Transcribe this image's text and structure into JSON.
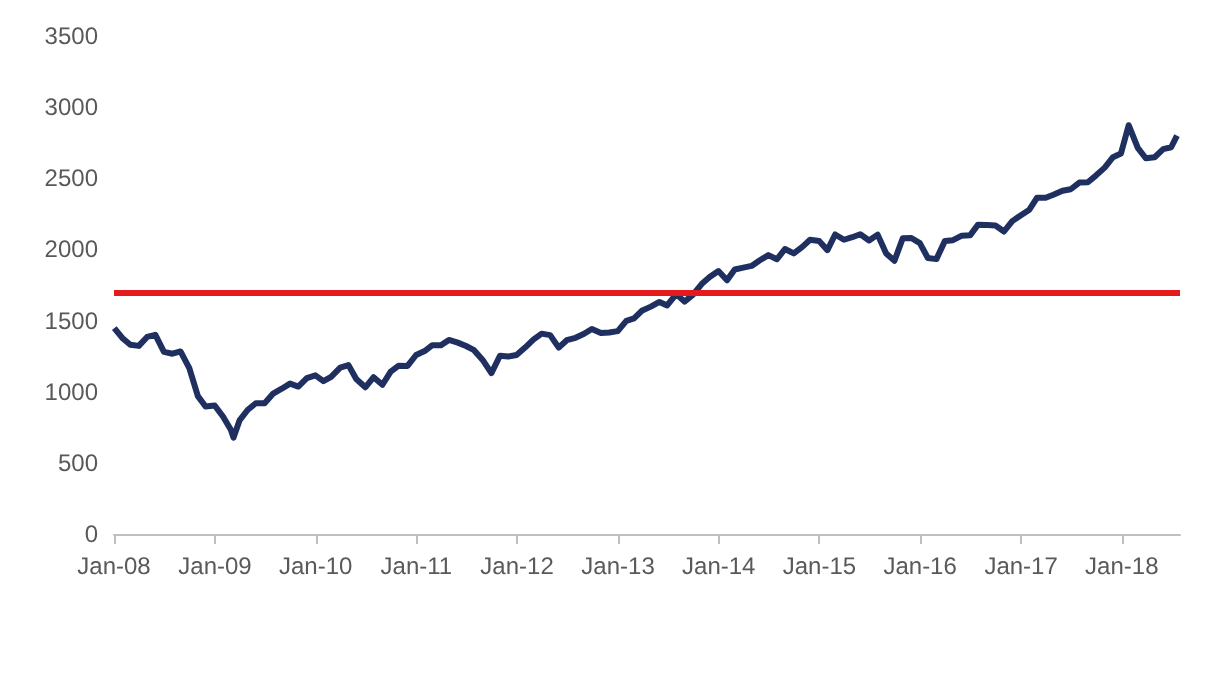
{
  "chart_data": {
    "type": "line",
    "x": [
      "2008-01-02",
      "2008-01-31",
      "2008-02-29",
      "2008-03-31",
      "2008-04-30",
      "2008-05-30",
      "2008-06-30",
      "2008-07-31",
      "2008-08-29",
      "2008-09-30",
      "2008-10-31",
      "2008-11-28",
      "2008-12-31",
      "2009-01-30",
      "2009-02-27",
      "2009-03-09",
      "2009-03-31",
      "2009-04-30",
      "2009-05-29",
      "2009-06-30",
      "2009-07-31",
      "2009-08-31",
      "2009-09-30",
      "2009-10-30",
      "2009-11-30",
      "2009-12-31",
      "2010-01-29",
      "2010-02-26",
      "2010-03-31",
      "2010-04-30",
      "2010-05-28",
      "2010-06-30",
      "2010-07-30",
      "2010-08-31",
      "2010-09-30",
      "2010-10-29",
      "2010-11-30",
      "2010-12-31",
      "2011-01-31",
      "2011-02-28",
      "2011-03-31",
      "2011-04-29",
      "2011-05-31",
      "2011-06-30",
      "2011-07-29",
      "2011-08-31",
      "2011-09-30",
      "2011-10-31",
      "2011-11-30",
      "2011-12-30",
      "2012-01-31",
      "2012-02-29",
      "2012-03-30",
      "2012-04-30",
      "2012-05-31",
      "2012-06-29",
      "2012-07-31",
      "2012-08-31",
      "2012-09-28",
      "2012-10-31",
      "2012-11-30",
      "2012-12-31",
      "2013-01-31",
      "2013-02-28",
      "2013-03-28",
      "2013-04-30",
      "2013-05-31",
      "2013-06-28",
      "2013-07-31",
      "2013-08-30",
      "2013-09-30",
      "2013-10-31",
      "2013-11-29",
      "2013-12-31",
      "2014-01-31",
      "2014-02-28",
      "2014-03-31",
      "2014-04-30",
      "2014-05-30",
      "2014-06-30",
      "2014-07-31",
      "2014-08-29",
      "2014-09-30",
      "2014-10-31",
      "2014-11-28",
      "2014-12-31",
      "2015-01-30",
      "2015-02-27",
      "2015-03-31",
      "2015-04-30",
      "2015-05-29",
      "2015-06-30",
      "2015-07-31",
      "2015-08-31",
      "2015-09-30",
      "2015-10-30",
      "2015-11-30",
      "2015-12-31",
      "2016-01-29",
      "2016-02-29",
      "2016-03-31",
      "2016-04-29",
      "2016-05-31",
      "2016-06-30",
      "2016-07-29",
      "2016-08-31",
      "2016-09-30",
      "2016-10-31",
      "2016-11-30",
      "2016-12-30",
      "2017-01-31",
      "2017-02-28",
      "2017-03-31",
      "2017-04-28",
      "2017-05-31",
      "2017-06-30",
      "2017-07-31",
      "2017-08-31",
      "2017-09-29",
      "2017-10-31",
      "2017-11-30",
      "2017-12-29",
      "2018-01-26",
      "2018-02-28",
      "2018-03-29",
      "2018-04-30",
      "2018-05-31",
      "2018-06-29",
      "2018-07-20"
    ],
    "series": [
      {
        "color": "#1f2f60",
        "values": [
          1447,
          1378,
          1330,
          1322,
          1385,
          1400,
          1280,
          1267,
          1283,
          1166,
          969,
          896,
          903,
          826,
          735,
          677,
          798,
          873,
          919,
          919,
          987,
          1021,
          1057,
          1036,
          1096,
          1115,
          1074,
          1104,
          1169,
          1187,
          1089,
          1031,
          1102,
          1049,
          1141,
          1183,
          1181,
          1258,
          1286,
          1327,
          1326,
          1364,
          1345,
          1321,
          1292,
          1219,
          1131,
          1253,
          1247,
          1258,
          1312,
          1366,
          1408,
          1398,
          1310,
          1362,
          1379,
          1407,
          1441,
          1412,
          1416,
          1426,
          1498,
          1515,
          1569,
          1598,
          1631,
          1606,
          1686,
          1633,
          1682,
          1757,
          1806,
          1848,
          1783,
          1859,
          1872,
          1884,
          1924,
          1960,
          1931,
          2003,
          1972,
          2018,
          2068,
          2059,
          1995,
          2105,
          2068,
          2086,
          2107,
          2063,
          2104,
          1972,
          1920,
          2079,
          2080,
          2044,
          1940,
          1932,
          2060,
          2065,
          2097,
          2099,
          2174,
          2171,
          2168,
          2126,
          2199,
          2239,
          2279,
          2364,
          2363,
          2384,
          2412,
          2423,
          2470,
          2472,
          2519,
          2575,
          2648,
          2674,
          2873,
          2714,
          2641,
          2648,
          2705,
          2718,
          2800
        ]
      }
    ],
    "xlim": [
      "2008-01-01",
      "2018-07-31"
    ],
    "xticks": [
      {
        "value": "2008-01-01",
        "label": "Jan-08"
      },
      {
        "value": "2009-01-01",
        "label": "Jan-09"
      },
      {
        "value": "2010-01-01",
        "label": "Jan-10"
      },
      {
        "value": "2011-01-01",
        "label": "Jan-11"
      },
      {
        "value": "2012-01-01",
        "label": "Jan-12"
      },
      {
        "value": "2013-01-01",
        "label": "Jan-13"
      },
      {
        "value": "2014-01-01",
        "label": "Jan-14"
      },
      {
        "value": "2015-01-01",
        "label": "Jan-15"
      },
      {
        "value": "2016-01-01",
        "label": "Jan-16"
      },
      {
        "value": "2017-01-01",
        "label": "Jan-17"
      },
      {
        "value": "2018-01-01",
        "label": "Jan-18"
      }
    ],
    "ylim": [
      0,
      3500
    ],
    "yticks": [
      0,
      500,
      1000,
      1500,
      2000,
      2500,
      3000,
      3500
    ],
    "ref_lines": [
      {
        "axis": "y",
        "value": 1700,
        "color": "#e41a1c"
      }
    ],
    "marker": "none",
    "line_style": "solid"
  }
}
